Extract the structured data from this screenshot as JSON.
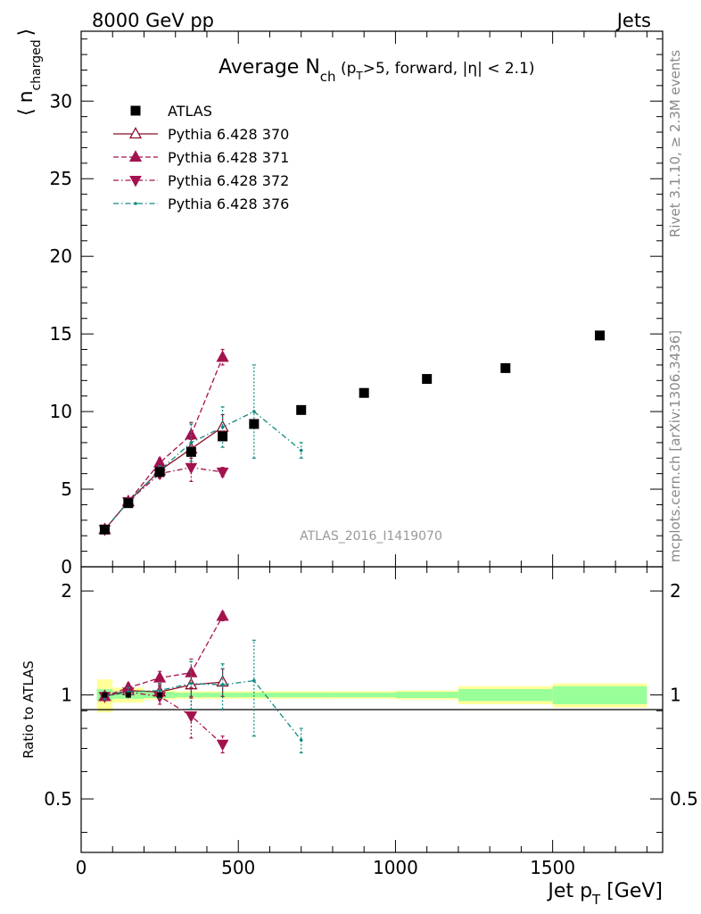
{
  "header": {
    "left": "8000 GeV pp",
    "right": "Jets"
  },
  "side_texts": {
    "rivet": "Rivet 3.1.10, ≥ 2.3M events",
    "mcplots": "mcplots.cern.ch [arXiv:1306.3436]"
  },
  "analysis_label": "ATLAS_2016_I1419070",
  "chart_data": [
    {
      "type": "scatter",
      "title": "Average N_ch (p_T>5, forward, |η| < 2.1)",
      "title_parts": {
        "main": "Average N",
        "sub": "ch",
        "paren_open": " (p",
        "sub2": "T",
        "rest": ">5, forward, |η| < 2.1)"
      },
      "ylabel": "⟨ n_charged ⟩",
      "ylabel_parts": {
        "bra": "⟨",
        "n": "n",
        "sub": "charged",
        "ket": "⟩"
      },
      "xlim": [
        0,
        1850
      ],
      "ylim": [
        0,
        34.5
      ],
      "y_ticks": [
        0,
        5,
        10,
        15,
        20,
        25,
        30
      ],
      "y_tick_labels": [
        "0",
        "5",
        "10",
        "15",
        "20",
        "25",
        "30"
      ],
      "legend_position": "top-left",
      "series": [
        {
          "name": "ATLAS",
          "color": "#000000",
          "marker": "square",
          "line": "none",
          "x": [
            75,
            150,
            250,
            350,
            450,
            550,
            700,
            900,
            1100,
            1350,
            1650
          ],
          "y": [
            2.4,
            4.1,
            6.1,
            7.4,
            8.4,
            9.2,
            10.1,
            11.2,
            12.1,
            12.8,
            14.9
          ]
        },
        {
          "name": "Pythia 6.428 370",
          "color": "#8b0f2a",
          "marker": "triangle-up-open",
          "line": "solid",
          "x": [
            75,
            150,
            250,
            350,
            450
          ],
          "y": [
            2.4,
            4.2,
            6.2,
            7.6,
            9.0
          ],
          "err": [
            0.1,
            0.2,
            0.3,
            0.6,
            0.8
          ]
        },
        {
          "name": "Pythia 6.428 371",
          "color": "#a3124f",
          "marker": "triangle-up",
          "line": "dashed",
          "x": [
            75,
            150,
            250,
            350,
            450
          ],
          "y": [
            2.4,
            4.2,
            6.7,
            8.5,
            13.5
          ],
          "err": [
            0.1,
            0.2,
            0.3,
            0.8,
            0.5
          ]
        },
        {
          "name": "Pythia 6.428 372",
          "color": "#a3124f",
          "marker": "triangle-down",
          "line": "dashdot",
          "x": [
            75,
            150,
            250,
            350,
            450
          ],
          "y": [
            2.4,
            4.2,
            6.0,
            6.4,
            6.1
          ],
          "err": [
            0.1,
            0.2,
            0.3,
            0.9,
            0.3
          ]
        },
        {
          "name": "Pythia 6.428 376",
          "color": "#108a80",
          "marker": "small-dot",
          "line": "dashdot",
          "x": [
            75,
            150,
            250,
            350,
            450,
            550,
            700
          ],
          "y": [
            2.4,
            4.2,
            6.2,
            8.0,
            9.0,
            10.0,
            7.5
          ],
          "err": [
            0.1,
            0.2,
            0.3,
            1.2,
            1.3,
            3.0,
            0.5
          ]
        }
      ]
    },
    {
      "type": "scatter",
      "ylabel": "Ratio to ATLAS",
      "xlabel": "Jet p_T [GeV]",
      "xlabel_parts": {
        "main": "Jet p",
        "sub": "T",
        "rest": " [GeV]"
      },
      "xlim": [
        0,
        1850
      ],
      "ylim": [
        0.35,
        2.35
      ],
      "x_ticks": [
        0,
        500,
        1000,
        1500
      ],
      "x_tick_labels": [
        "0",
        "500",
        "1000",
        "1500"
      ],
      "y_ticks": [
        0.5,
        1,
        2
      ],
      "y_tick_labels": [
        "0.5",
        "1",
        "2"
      ],
      "bands": {
        "x_edges": [
          50,
          100,
          200,
          300,
          400,
          500,
          600,
          800,
          1000,
          1200,
          1500,
          1800
        ],
        "inner_half": [
          0.04,
          0.025,
          0.02,
          0.015,
          0.015,
          0.015,
          0.015,
          0.015,
          0.02,
          0.04,
          0.06
        ],
        "outer_half": [
          0.11,
          0.05,
          0.03,
          0.025,
          0.025,
          0.025,
          0.025,
          0.025,
          0.03,
          0.06,
          0.08
        ],
        "inner_color": "#99ff99",
        "outer_color": "#ffff99"
      },
      "series": [
        {
          "name": "Pythia 6.428 370",
          "x": [
            75,
            150,
            250,
            350,
            450
          ],
          "y": [
            0.99,
            1.03,
            1.02,
            1.07,
            1.09
          ],
          "err": [
            0.02,
            0.03,
            0.04,
            0.09,
            0.1
          ]
        },
        {
          "name": "Pythia 6.428 371",
          "x": [
            75,
            150,
            250,
            350,
            450
          ],
          "y": [
            0.99,
            1.05,
            1.12,
            1.16,
            1.69
          ],
          "err": [
            0.02,
            0.03,
            0.05,
            0.11,
            0.05
          ]
        },
        {
          "name": "Pythia 6.428 372",
          "x": [
            75,
            150,
            250,
            350,
            450
          ],
          "y": [
            0.99,
            1.02,
            0.99,
            0.87,
            0.72
          ],
          "err": [
            0.02,
            0.03,
            0.05,
            0.12,
            0.04
          ]
        },
        {
          "name": "Pythia 6.428 376",
          "x": [
            75,
            150,
            250,
            350,
            450,
            550,
            700
          ],
          "y": [
            0.99,
            1.02,
            1.03,
            1.08,
            1.07,
            1.1,
            0.74
          ],
          "err": [
            0.02,
            0.03,
            0.05,
            0.17,
            0.16,
            0.34,
            0.06
          ]
        }
      ]
    }
  ]
}
